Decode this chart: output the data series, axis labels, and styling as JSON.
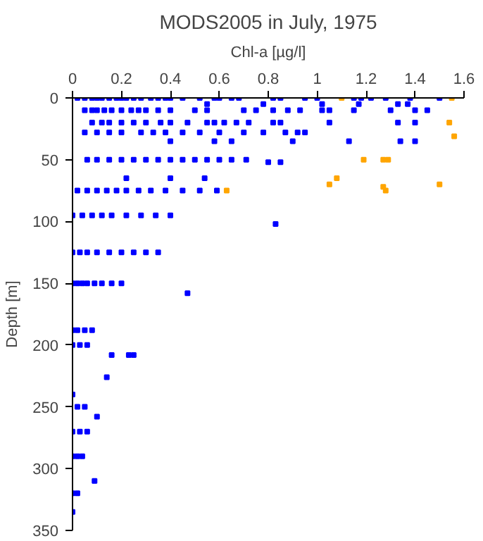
{
  "chart_data": {
    "type": "scatter",
    "title": "MODS2005 in July, 1975",
    "xlabel": "Chl-a [µg/l]",
    "ylabel": "Depth [m]",
    "xlim": [
      0,
      1.6
    ],
    "xticks": [
      0,
      0.2,
      0.4,
      0.6,
      0.8,
      1,
      1.2,
      1.4,
      1.6
    ],
    "ylim": [
      350,
      0
    ],
    "yticks": [
      0,
      50,
      100,
      150,
      200,
      250,
      300,
      350
    ],
    "grid": false,
    "marker": "square",
    "series": [
      {
        "color": "#0000ff",
        "x": [
          0.02,
          0.05,
          0.08,
          0.1,
          0.12,
          0.15,
          0.18,
          0.2,
          0.22,
          0.25,
          0.28,
          0.32,
          0.35,
          0.38,
          0.4,
          0.45,
          0.52,
          0.58,
          0.6,
          0.65,
          0.68,
          0.82,
          0.85,
          0.95,
          1.0,
          1.15,
          1.18,
          1.22,
          1.28,
          1.38,
          1.5,
          0.55,
          0.78,
          1.02,
          1.17,
          1.33,
          1.37,
          0.05,
          0.08,
          0.1,
          0.13,
          0.16,
          0.2,
          0.24,
          0.27,
          0.3,
          0.35,
          0.4,
          0.5,
          0.55,
          0.7,
          0.75,
          0.82,
          0.88,
          0.93,
          1.02,
          1.05,
          1.15,
          1.3,
          1.4,
          1.45,
          0.08,
          0.12,
          0.15,
          0.2,
          0.25,
          0.3,
          0.36,
          0.4,
          0.47,
          0.55,
          0.58,
          0.62,
          0.67,
          0.72,
          0.82,
          0.85,
          1.05,
          1.33,
          1.4,
          0.05,
          0.1,
          0.15,
          0.2,
          0.28,
          0.33,
          0.38,
          0.45,
          0.52,
          0.6,
          0.7,
          0.78,
          0.87,
          0.92,
          0.95,
          0.4,
          0.58,
          0.65,
          0.9,
          1.13,
          1.34,
          1.4,
          0.06,
          0.1,
          0.15,
          0.2,
          0.25,
          0.3,
          0.35,
          0.4,
          0.45,
          0.5,
          0.55,
          0.6,
          0.65,
          0.71,
          0.8,
          0.85,
          0.22,
          0.4,
          0.54,
          0.02,
          0.06,
          0.1,
          0.14,
          0.18,
          0.22,
          0.27,
          0.32,
          0.38,
          0.45,
          0.52,
          0.59,
          0.0,
          0.04,
          0.08,
          0.12,
          0.16,
          0.22,
          0.28,
          0.34,
          0.4,
          0.83,
          0.0,
          0.03,
          0.06,
          0.1,
          0.15,
          0.2,
          0.25,
          0.3,
          0.35,
          0.0,
          0.02,
          0.04,
          0.06,
          0.09,
          0.12,
          0.16,
          0.2,
          0.47,
          0.0,
          0.02,
          0.05,
          0.08,
          0.16,
          0.23,
          0.25,
          0.0,
          0.03,
          0.06,
          0.14,
          0.0,
          0.02,
          0.05,
          0.1,
          0.0,
          0.03,
          0.06,
          0.0,
          0.02,
          0.04,
          0.09,
          0.0,
          0.02,
          0.0
        ],
        "values": [
          0,
          0,
          0,
          0,
          0,
          0,
          0,
          0,
          0,
          0,
          0,
          0,
          0,
          0,
          0,
          0,
          0,
          0,
          0,
          0,
          0,
          0,
          0,
          0,
          0,
          0,
          0,
          0,
          0,
          0,
          0,
          5,
          5,
          5,
          5,
          5,
          5,
          10,
          10,
          10,
          10,
          10,
          10,
          10,
          10,
          10,
          10,
          10,
          10,
          10,
          10,
          10,
          10,
          10,
          10,
          10,
          10,
          10,
          10,
          10,
          10,
          20,
          20,
          20,
          20,
          20,
          20,
          20,
          20,
          20,
          20,
          20,
          20,
          20,
          20,
          20,
          20,
          20,
          20,
          20,
          28,
          28,
          28,
          28,
          28,
          28,
          28,
          28,
          28,
          28,
          28,
          28,
          28,
          28,
          28,
          35,
          35,
          35,
          35,
          35,
          35,
          35,
          50,
          50,
          50,
          50,
          50,
          50,
          50,
          50,
          50,
          50,
          50,
          50,
          50,
          50,
          52,
          52,
          65,
          65,
          65,
          75,
          75,
          75,
          75,
          75,
          75,
          75,
          75,
          75,
          75,
          75,
          75,
          95,
          95,
          95,
          95,
          95,
          95,
          95,
          95,
          95,
          102,
          125,
          125,
          125,
          125,
          125,
          125,
          125,
          125,
          125,
          150,
          150,
          150,
          150,
          150,
          150,
          150,
          150,
          158,
          188,
          188,
          188,
          188,
          208,
          208,
          208,
          200,
          200,
          200,
          226,
          240,
          250,
          250,
          258,
          270,
          270,
          270,
          290,
          290,
          290,
          310,
          320,
          320,
          335
        ]
      },
      {
        "color": "#ffa500",
        "x": [
          1.1,
          1.55,
          1.54,
          1.56,
          1.19,
          1.27,
          1.29,
          1.08,
          1.05,
          1.28,
          1.27,
          1.5,
          0.63
        ],
        "values": [
          0,
          0,
          20,
          31,
          50,
          50,
          50,
          65,
          70,
          75,
          72,
          70,
          75
        ]
      }
    ]
  }
}
